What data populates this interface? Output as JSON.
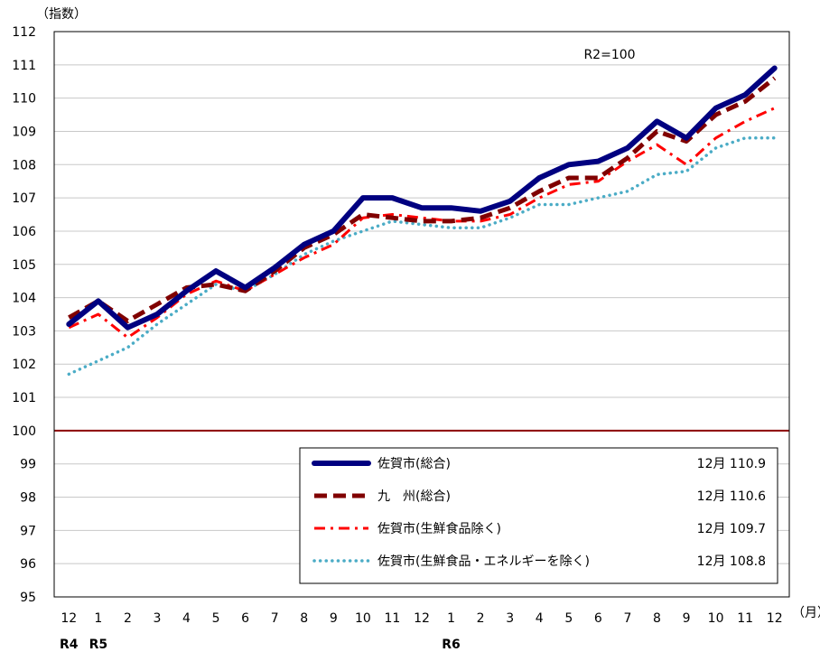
{
  "chart_data": {
    "type": "line",
    "ylabel": "（指数）",
    "xunit": "（月）",
    "annotation": "R2=100",
    "ylim": [
      95,
      112
    ],
    "yticks": [
      95,
      96,
      97,
      98,
      99,
      100,
      101,
      102,
      103,
      104,
      105,
      106,
      107,
      108,
      109,
      110,
      111,
      112
    ],
    "categories": [
      "12",
      "1",
      "2",
      "3",
      "4",
      "5",
      "6",
      "7",
      "8",
      "9",
      "10",
      "11",
      "12",
      "1",
      "2",
      "3",
      "4",
      "5",
      "6",
      "7",
      "8",
      "9",
      "10",
      "11",
      "12"
    ],
    "era_labels": [
      {
        "text": "R4",
        "index": 0
      },
      {
        "text": "R5",
        "index": 1
      },
      {
        "text": "R6",
        "index": 13
      }
    ],
    "baseline": 100,
    "grid": true,
    "legend_position": "bottom-right",
    "series": [
      {
        "name": "佐賀市(総合)",
        "suffix": "12月 110.9",
        "color": "#000080",
        "style": "solid",
        "values": [
          103.2,
          103.9,
          103.1,
          103.5,
          104.2,
          104.8,
          104.3,
          104.9,
          105.6,
          106.0,
          107.0,
          107.0,
          106.7,
          106.7,
          106.6,
          106.9,
          107.6,
          108.0,
          108.1,
          108.5,
          109.3,
          108.8,
          109.7,
          110.1,
          110.9
        ]
      },
      {
        "name": "九　州(総合)",
        "suffix": "12月 110.6",
        "color": "#800000",
        "style": "dashed",
        "values": [
          103.4,
          103.9,
          103.3,
          103.8,
          104.3,
          104.4,
          104.2,
          104.8,
          105.5,
          105.9,
          106.5,
          106.4,
          106.3,
          106.3,
          106.4,
          106.7,
          107.2,
          107.6,
          107.6,
          108.2,
          109.0,
          108.7,
          109.5,
          109.9,
          110.6
        ]
      },
      {
        "name": "佐賀市(生鮮食品除く)",
        "suffix": "12月 109.7",
        "color": "#ff0000",
        "style": "dashdot",
        "values": [
          103.1,
          103.5,
          102.8,
          103.4,
          104.1,
          104.5,
          104.2,
          104.7,
          105.2,
          105.6,
          106.4,
          106.5,
          106.4,
          106.3,
          106.3,
          106.5,
          107.0,
          107.4,
          107.5,
          108.1,
          108.6,
          108.0,
          108.8,
          109.3,
          109.7
        ]
      },
      {
        "name": "佐賀市(生鮮食品・エネルギーを除く)",
        "suffix": "12月 108.8",
        "color": "#4bacc6",
        "style": "dotted",
        "values": [
          101.7,
          102.1,
          102.5,
          103.2,
          103.8,
          104.4,
          104.2,
          104.7,
          105.3,
          105.7,
          106.0,
          106.3,
          106.2,
          106.1,
          106.1,
          106.4,
          106.8,
          106.8,
          107.0,
          107.2,
          107.7,
          107.8,
          108.5,
          108.8,
          108.8
        ]
      }
    ]
  }
}
